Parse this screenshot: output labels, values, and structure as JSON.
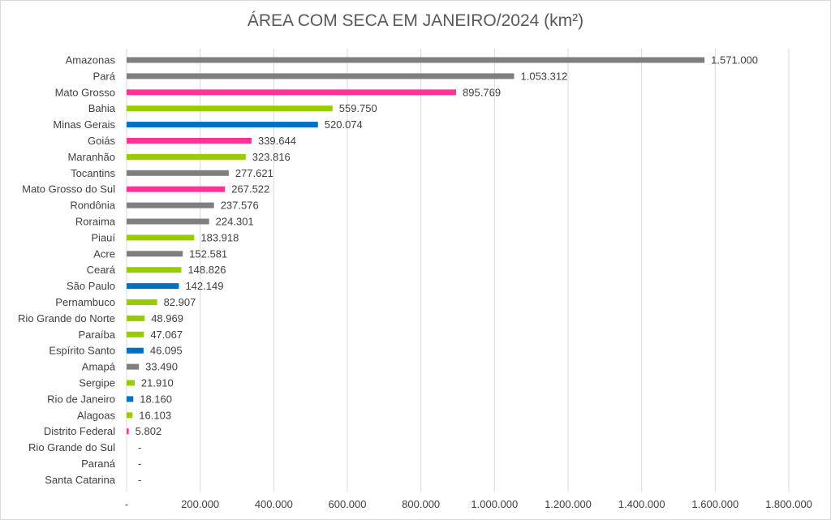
{
  "chart_data": {
    "type": "bar",
    "orientation": "horizontal",
    "title": "ÁREA COM SECA EM JANEIRO/2024 (km²)",
    "xlim": [
      0,
      1800000
    ],
    "x_ticks": [
      "-",
      "200.000",
      "400.000",
      "600.000",
      "800.000",
      "1.000.000",
      "1.200.000",
      "1.400.000",
      "1.600.000",
      "1.800.000"
    ],
    "grid": "vertical",
    "colors": {
      "grey": "#7f7f7f",
      "pink": "#ff3399",
      "green": "#99cc00",
      "blue": "#0070c0"
    },
    "categories": [
      "Amazonas",
      "Pará",
      "Mato Grosso",
      "Bahia",
      "Minas Gerais",
      "Goiás",
      "Maranhão",
      "Tocantins",
      "Mato Grosso do Sul",
      "Rondônia",
      "Roraima",
      "Piauí",
      "Acre",
      "Ceará",
      "São Paulo",
      "Pernambuco",
      "Rio Grande do Norte",
      "Paraíba",
      "Espírito Santo",
      "Amapá",
      "Sergipe",
      "Rio de Janeiro",
      "Alagoas",
      "Distrito Federal",
      "Rio Grande do Sul",
      "Paraná",
      "Santa Catarina"
    ],
    "values": [
      1571000,
      1053312,
      895769,
      559750,
      520074,
      339644,
      323816,
      277621,
      267522,
      237576,
      224301,
      183918,
      152581,
      148826,
      142149,
      82907,
      48969,
      47067,
      46095,
      33490,
      21910,
      18160,
      16103,
      5802,
      0,
      0,
      0
    ],
    "value_labels": [
      "1.571.000",
      "1.053.312",
      "895.769",
      "559.750",
      "520.074",
      "339.644",
      "323.816",
      "277.621",
      "267.522",
      "237.576",
      "224.301",
      "183.918",
      "152.581",
      "148.826",
      "142.149",
      "82.907",
      "48.969",
      "47.067",
      "46.095",
      "33.490",
      "21.910",
      "18.160",
      "16.103",
      "5.802",
      "-",
      "-",
      "-"
    ],
    "bar_colors": [
      "grey",
      "grey",
      "pink",
      "green",
      "blue",
      "pink",
      "green",
      "grey",
      "pink",
      "grey",
      "grey",
      "green",
      "grey",
      "green",
      "blue",
      "green",
      "green",
      "green",
      "blue",
      "grey",
      "green",
      "blue",
      "green",
      "pink",
      "green",
      "blue",
      "blue"
    ]
  }
}
